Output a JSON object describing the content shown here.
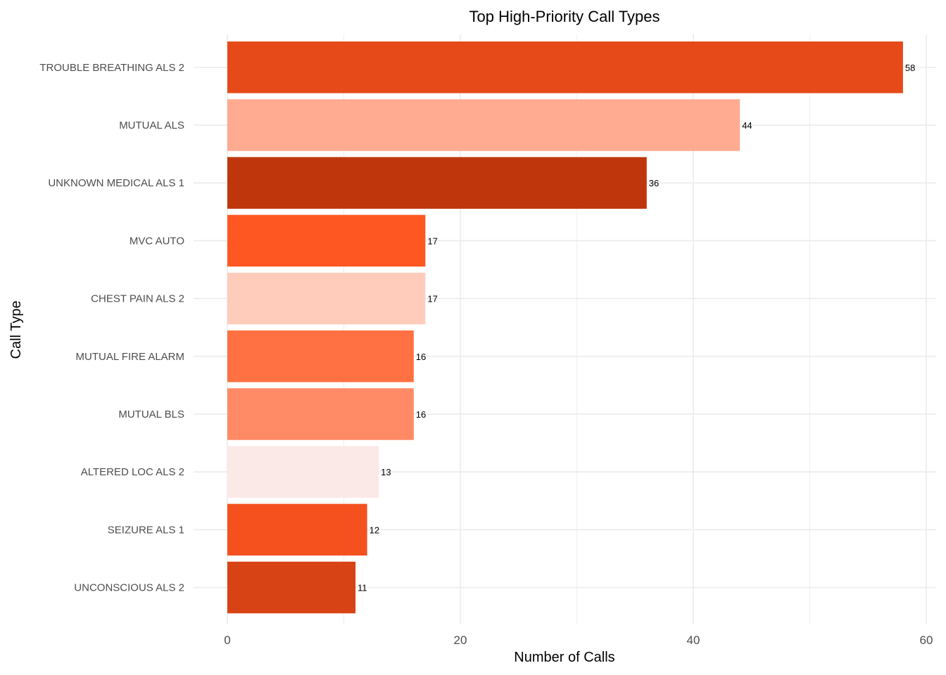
{
  "chart_data": {
    "type": "bar",
    "orientation": "horizontal",
    "title": "Top High-Priority Call Types",
    "xlabel": "Number of Calls",
    "ylabel": "Call Type",
    "xlim": [
      0,
      60
    ],
    "x_ticks": [
      0,
      20,
      40,
      60
    ],
    "grid": true,
    "legend": "none",
    "categories": [
      "TROUBLE BREATHING ALS 2",
      "MUTUAL ALS",
      "UNKNOWN MEDICAL ALS 1",
      "MVC AUTO",
      "CHEST PAIN ALS 2",
      "MUTUAL FIRE ALARM",
      "MUTUAL BLS",
      "ALTERED LOC ALS 2",
      "SEIZURE ALS 1",
      "UNCONSCIOUS ALS 2"
    ],
    "values": [
      58,
      44,
      36,
      17,
      17,
      16,
      16,
      13,
      12,
      11
    ],
    "colors": [
      "#E64A19",
      "#FFAB91",
      "#BF360C",
      "#FF5722",
      "#FFCCBC",
      "#FF7043",
      "#FF8A65",
      "#FBE9E7",
      "#F4511E",
      "#D84315"
    ]
  }
}
